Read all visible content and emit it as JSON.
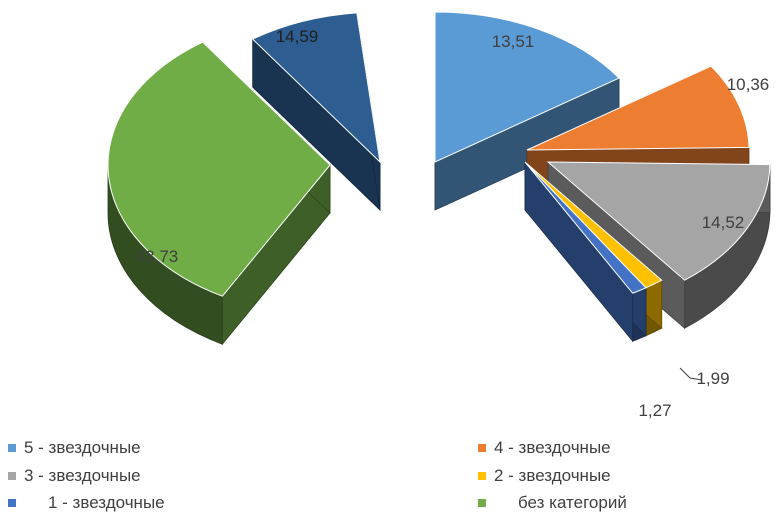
{
  "chart_data": {
    "type": "pie",
    "variant": "3d-exploded",
    "title": "",
    "categories": [
      "5 - звездочные",
      "4 - звездочные",
      "3 - звездочные",
      "2 - звездочные",
      "1 - звездочные",
      "без категорий"
    ],
    "values": [
      13.51,
      10.36,
      14.52,
      1.99,
      1.27,
      43.73
    ],
    "value_labels": [
      "13,51",
      "10,36",
      "14,52",
      "1,99",
      "1,27",
      "43,73"
    ],
    "legend": [
      {
        "label": "5 - звездочные",
        "color": "#5b9bd5"
      },
      {
        "label": "4 - звездочные",
        "color": "#ed7d31"
      },
      {
        "label": "3 - звездочные",
        "color": "#a5a5a5"
      },
      {
        "label": "2 - звездочные",
        "color": "#ffc000"
      },
      {
        "label": "1 - звездочные",
        "color": "#4472c4"
      },
      {
        "label": "без категорий",
        "color": "#70ad47"
      }
    ],
    "legend_position": "bottom",
    "extra_slice": {
      "value_label": "14,59",
      "color": "#2e5e91"
    }
  }
}
